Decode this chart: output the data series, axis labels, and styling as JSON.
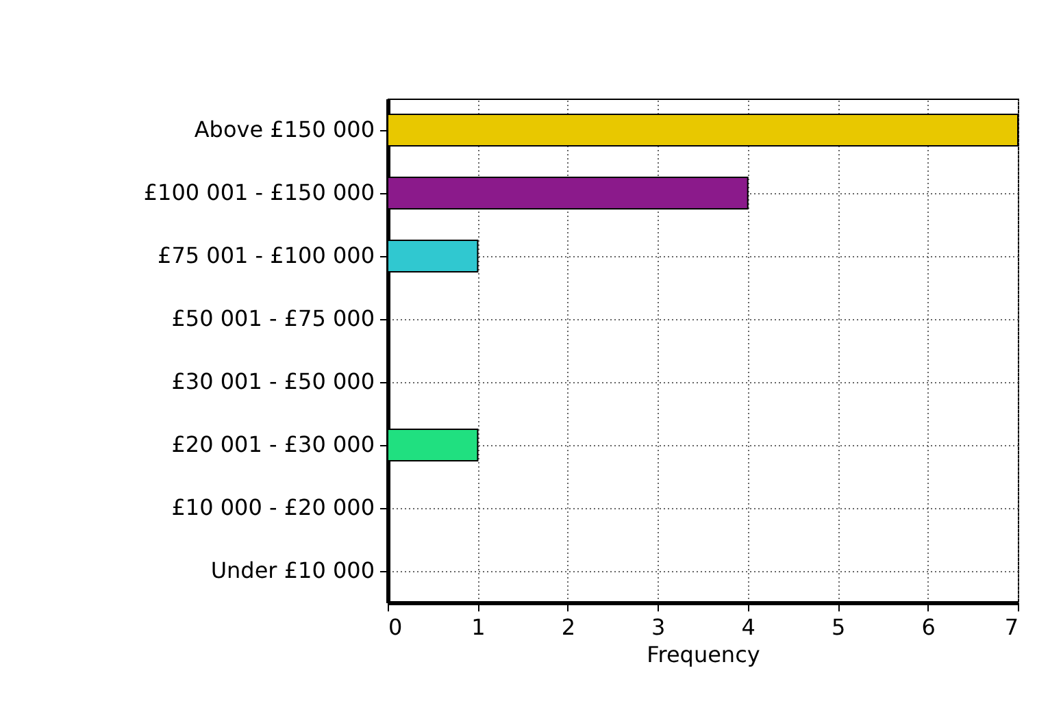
{
  "chart_data": {
    "type": "bar",
    "orientation": "horizontal",
    "xlabel": "Frequency",
    "categories": [
      "Above £150 000",
      "£100 001 - £150 000",
      "£75 001 - £100 000",
      "£50 001 - £75 000",
      "£30 001 - £50 000",
      "£20 001 - £30 000",
      "£10 000 - £20 000",
      "Under £10 000"
    ],
    "values": [
      7,
      4,
      1,
      0,
      0,
      1,
      0,
      0
    ],
    "colors": [
      "#e8c800",
      "#8b1a8b",
      "#30c8d0",
      "#a0a0a0",
      "#a0a0a0",
      "#20e080",
      "#a0a0a0",
      "#a0a0a0"
    ],
    "xlim": [
      0,
      7
    ],
    "xticks": [
      0,
      1,
      2,
      3,
      4,
      5,
      6,
      7
    ],
    "grid": true
  }
}
